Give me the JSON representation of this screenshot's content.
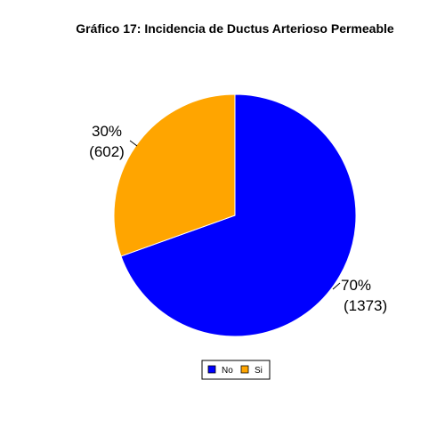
{
  "chart_data": {
    "type": "pie",
    "title": "Gráfico 17: Incidencia de Ductus Arterioso Permeable",
    "slices": [
      {
        "name": "No",
        "value": 1373,
        "percent_label": "70%",
        "count_label": "(1373)",
        "color": "#0000FF"
      },
      {
        "name": "Si",
        "value": 602,
        "percent_label": "30%",
        "count_label": "(602)",
        "color": "#FFA500"
      }
    ],
    "legend": {
      "placement": "bottom",
      "entries": [
        "No",
        "Si"
      ]
    }
  }
}
